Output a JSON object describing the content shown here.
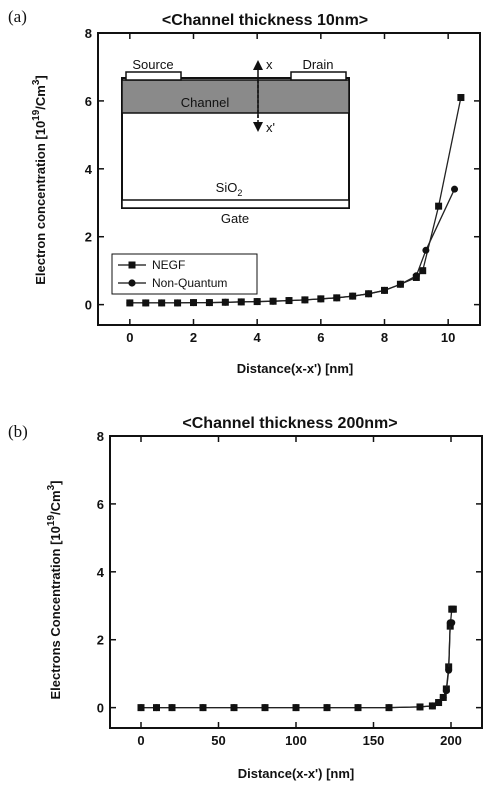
{
  "colors": {
    "axis": "#111111",
    "channel": "#8a8a8a",
    "line": "#222222",
    "marker": "#111111"
  },
  "chart_data": [
    {
      "panel_label": "(a)",
      "type": "line",
      "title": "<Channel thickness 10nm>",
      "xlabel": "Distance(x-x') [nm]",
      "ylabel": "Electron concentration [10^19/Cm^3]",
      "ylabel_parts": {
        "main": "Electron concentration [10",
        "sup1": "19",
        "mid": "/Cm",
        "sup2": "3",
        "end": "]"
      },
      "xlim": [
        -1,
        11
      ],
      "ylim": [
        -0.6,
        8
      ],
      "xticks": [
        0,
        2,
        4,
        6,
        8,
        10
      ],
      "yticks": [
        0,
        2,
        4,
        6,
        8
      ],
      "grid": false,
      "legend_position": "bottom-left",
      "series": [
        {
          "name": "NEGF",
          "marker": "square",
          "x": [
            0.0,
            0.5,
            1.0,
            1.5,
            2.0,
            2.5,
            3.0,
            3.5,
            4.0,
            4.5,
            5.0,
            5.5,
            6.0,
            6.5,
            7.0,
            7.5,
            8.0,
            8.5,
            9.0,
            9.2,
            9.7,
            10.4
          ],
          "y": [
            0.05,
            0.05,
            0.05,
            0.05,
            0.06,
            0.06,
            0.07,
            0.08,
            0.09,
            0.1,
            0.12,
            0.14,
            0.17,
            0.2,
            0.25,
            0.32,
            0.42,
            0.6,
            0.8,
            1.0,
            2.9,
            6.1
          ]
        },
        {
          "name": "Non-Quantum",
          "marker": "circle",
          "x": [
            0.0,
            0.5,
            1.0,
            1.5,
            2.0,
            2.5,
            3.0,
            3.5,
            4.0,
            4.5,
            5.0,
            5.5,
            6.0,
            6.5,
            7.0,
            7.5,
            8.0,
            8.5,
            9.0,
            9.3,
            10.2
          ],
          "y": [
            0.05,
            0.05,
            0.05,
            0.05,
            0.06,
            0.06,
            0.07,
            0.08,
            0.09,
            0.1,
            0.12,
            0.14,
            0.17,
            0.2,
            0.25,
            0.32,
            0.42,
            0.6,
            0.85,
            1.6,
            3.4
          ]
        }
      ],
      "inset": {
        "source": "Source",
        "drain": "Drain",
        "channel": "Channel",
        "x_arrow": "x",
        "xprime_arrow": "x'",
        "oxide": "SiO",
        "oxide_sub": "2",
        "gate": "Gate"
      }
    },
    {
      "panel_label": "(b)",
      "type": "line",
      "title": "<Channel thickness 200nm>",
      "xlabel": "Distance(x-x') [nm]",
      "ylabel": "Electrons Concentration [10^19/Cm^3]",
      "ylabel_parts": {
        "main": "Electrons Concentration [10",
        "sup1": "19",
        "mid": "/Cm",
        "sup2": "3",
        "end": "]"
      },
      "xlim": [
        -20,
        220
      ],
      "ylim": [
        -0.6,
        8
      ],
      "xticks": [
        0,
        50,
        100,
        150,
        200
      ],
      "yticks": [
        0,
        2,
        4,
        6,
        8
      ],
      "grid": false,
      "series": [
        {
          "name": "",
          "marker": "square",
          "x": [
            0,
            10,
            20,
            40,
            60,
            80,
            100,
            120,
            140,
            160,
            180,
            188,
            192,
            195,
            197,
            198.5,
            199.5,
            200.5,
            201.5
          ],
          "y": [
            0.0,
            0.0,
            0.0,
            0.0,
            0.0,
            0.0,
            0.0,
            0.0,
            0.0,
            0.0,
            0.02,
            0.05,
            0.15,
            0.3,
            0.55,
            1.2,
            2.4,
            2.9,
            2.9
          ]
        },
        {
          "name": "",
          "marker": "circle",
          "x": [
            0,
            10,
            20,
            40,
            60,
            80,
            100,
            120,
            140,
            160,
            180,
            188,
            192,
            195,
            197,
            198.5,
            199.5,
            200.5
          ],
          "y": [
            0.0,
            0.0,
            0.0,
            0.0,
            0.0,
            0.0,
            0.0,
            0.0,
            0.0,
            0.0,
            0.02,
            0.05,
            0.15,
            0.3,
            0.5,
            1.1,
            2.5,
            2.5
          ]
        }
      ]
    }
  ]
}
